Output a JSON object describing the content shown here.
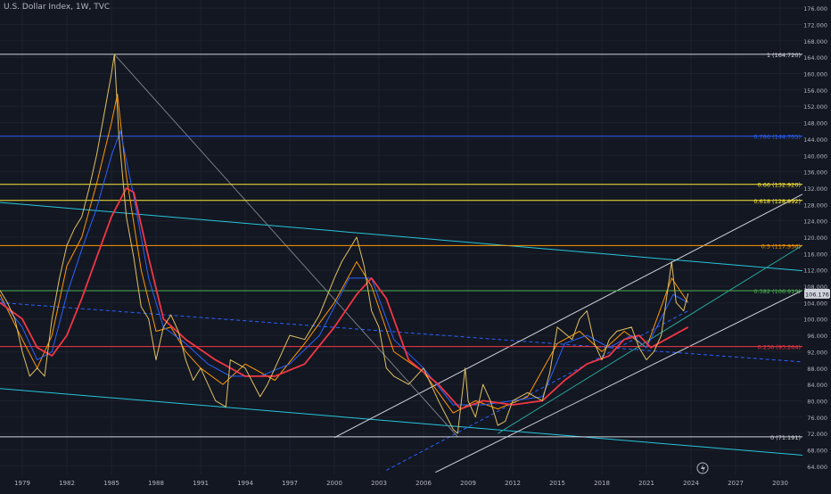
{
  "symbol_title": "U.S. Dollar Index, 1W, TVC",
  "colors": {
    "background": "#131722",
    "axis_text": "#b2b5be",
    "grid": "#1e222d",
    "price_tag": "#d1d4dc"
  },
  "footer_icon": "lightning-icon",
  "chart_data": {
    "type": "line",
    "title": "U.S. Dollar Index, 1W, TVC",
    "xlabel": "",
    "ylabel": "",
    "xlim": [
      1977.5,
      2031.5
    ],
    "ylim": [
      62,
      178
    ],
    "grid": false,
    "x_ticks": [
      "1979",
      "1982",
      "1985",
      "1988",
      "1991",
      "1994",
      "1997",
      "2000",
      "2003",
      "2006",
      "2009",
      "2012",
      "2015",
      "2018",
      "2021",
      "2024",
      "2027",
      "2030"
    ],
    "y_ticks": [
      "64.000",
      "68.000",
      "72.000",
      "76.000",
      "80.000",
      "84.000",
      "88.000",
      "92.000",
      "96.000",
      "100.000",
      "104.000",
      "108.000",
      "112.000",
      "116.000",
      "120.000",
      "124.000",
      "128.000",
      "132.000",
      "136.000",
      "140.000",
      "144.000",
      "148.000",
      "152.000",
      "156.000",
      "160.000",
      "164.000",
      "168.000",
      "172.000",
      "176.000"
    ],
    "last_price": {
      "value": 106.176,
      "label": "106.176"
    },
    "fib_levels": [
      {
        "ratio": "1",
        "value": 164.72,
        "label": "1 (164.720)",
        "color": "#d1d4dc"
      },
      {
        "ratio": "0.786",
        "value": 144.705,
        "label": "0.786 (144.705)",
        "color": "#2962ff"
      },
      {
        "ratio": "0.66",
        "value": 132.92,
        "label": "0.66 (132.920)",
        "color": "#ffeb3b"
      },
      {
        "ratio": "0.618",
        "value": 128.992,
        "label": "0.618 (128.992)",
        "color": "#ffeb3b"
      },
      {
        "ratio": "0.5",
        "value": 117.956,
        "label": "0.5 (117.956)",
        "color": "#ff9800"
      },
      {
        "ratio": "0.382",
        "value": 106.919,
        "label": "0.382 (106.919)",
        "color": "#4caf50"
      },
      {
        "ratio": "0.236",
        "value": 93.264,
        "label": "0.236 (93.264)",
        "color": "#f23645"
      },
      {
        "ratio": "0",
        "value": 71.191,
        "label": "0 (71.191)",
        "color": "#d1d4dc"
      }
    ],
    "price_series": {
      "x": [
        1977.5,
        1978.0,
        1978.5,
        1979.0,
        1979.5,
        1980.0,
        1980.5,
        1981.0,
        1981.5,
        1982.0,
        1982.5,
        1983.0,
        1983.5,
        1984.0,
        1984.5,
        1985.0,
        1985.2,
        1985.5,
        1986.0,
        1986.5,
        1987.0,
        1987.5,
        1988.0,
        1988.5,
        1989.0,
        1989.5,
        1990.0,
        1990.5,
        1991.0,
        1991.5,
        1992.0,
        1992.7,
        1993.0,
        1994.0,
        1995.0,
        1995.5,
        1996.0,
        1997.0,
        1998.0,
        1999.0,
        2000.0,
        2000.5,
        2001.0,
        2001.5,
        2002.0,
        2002.5,
        2003.0,
        2003.5,
        2004.0,
        2005.0,
        2006.0,
        2007.0,
        2008.0,
        2008.3,
        2008.8,
        2009.0,
        2009.5,
        2010.0,
        2010.5,
        2011.0,
        2011.5,
        2012.0,
        2013.0,
        2014.0,
        2014.5,
        2015.0,
        2016.0,
        2016.5,
        2017.0,
        2017.5,
        2018.0,
        2018.5,
        2019.0,
        2020.0,
        2020.5,
        2021.0,
        2021.5,
        2022.0,
        2022.7,
        2023.0,
        2023.5,
        2023.8
      ],
      "y": [
        107,
        104,
        100,
        92,
        86,
        88,
        86,
        100,
        110,
        118,
        122,
        125,
        132,
        140,
        150,
        160,
        164.7,
        145,
        125,
        115,
        103,
        100,
        90,
        98,
        101,
        97,
        90,
        85,
        88,
        84,
        80,
        78.5,
        90,
        88,
        81,
        84,
        88,
        96,
        95,
        101,
        110,
        114,
        117,
        120,
        113,
        102,
        98,
        88,
        86,
        84,
        88,
        80,
        73,
        72,
        88,
        80,
        76,
        84,
        80,
        74,
        75,
        80,
        82,
        80,
        87,
        98,
        95,
        100,
        102,
        94,
        90,
        95,
        97,
        98,
        93,
        90,
        92,
        96,
        114,
        104,
        102,
        106.2
      ]
    },
    "series": [
      {
        "name": "",
        "role": "ema-fast",
        "color": "#ff9800",
        "x": [
          1977.5,
          1979.0,
          1980.0,
          1981.0,
          1982.0,
          1983.0,
          1984.0,
          1985.0,
          1985.4,
          1986.0,
          1987.0,
          1988.0,
          1989.0,
          1990.0,
          1991.0,
          1992.5,
          1994.0,
          1996.0,
          1998.0,
          2000.0,
          2001.5,
          2002.5,
          2004.0,
          2006.0,
          2008.0,
          2009.5,
          2011.0,
          2013.0,
          2015.0,
          2016.5,
          2018.0,
          2019.5,
          2021.0,
          2022.7,
          2023.8
        ],
        "y": [
          106,
          95,
          88,
          96,
          113,
          120,
          133,
          148,
          155,
          135,
          112,
          97,
          98,
          92,
          88,
          84,
          89,
          85,
          94,
          104,
          114,
          108,
          92,
          87,
          77,
          80,
          78,
          81,
          94,
          97,
          92,
          97,
          93,
          110,
          104
        ]
      },
      {
        "name": "",
        "role": "ema-mid",
        "color": "#2962ff",
        "x": [
          1977.5,
          1979.0,
          1980.0,
          1981.0,
          1982.0,
          1983.0,
          1984.0,
          1985.0,
          1985.6,
          1986.5,
          1987.5,
          1988.5,
          1990.0,
          1991.5,
          1993.0,
          1995.0,
          1997.0,
          1999.0,
          2001.0,
          2002.5,
          2004.0,
          2006.0,
          2008.0,
          2010.0,
          2012.0,
          2014.0,
          2015.5,
          2017.0,
          2018.5,
          2020.0,
          2021.0,
          2022.8,
          2023.8
        ],
        "y": [
          105,
          98,
          90,
          92,
          106,
          117,
          127,
          140,
          146,
          130,
          110,
          98,
          94,
          89,
          86,
          86,
          89,
          96,
          110,
          110,
          95,
          88,
          79,
          79,
          80,
          81,
          94,
          96,
          93,
          96,
          93,
          106,
          104
        ]
      },
      {
        "name": "",
        "role": "ma-long",
        "color": "#f23645",
        "x": [
          1977.5,
          1979.0,
          1980.0,
          1981.0,
          1982.0,
          1983.0,
          1984.0,
          1985.0,
          1986.0,
          1986.5,
          1987.5,
          1988.5,
          1990.0,
          1992.0,
          1994.0,
          1996.0,
          1998.0,
          2000.0,
          2001.5,
          2002.5,
          2003.5,
          2005.0,
          2007.0,
          2008.5,
          2010.0,
          2012.0,
          2014.0,
          2015.5,
          2017.0,
          2018.5,
          2019.5,
          2020.5,
          2021.3,
          2022.3,
          2023.8
        ],
        "y": [
          104,
          100,
          93,
          91,
          96,
          105,
          115,
          125,
          132,
          131,
          115,
          100,
          95,
          90,
          86,
          86,
          89,
          98,
          106,
          110,
          105,
          90,
          84,
          78,
          80,
          79,
          80,
          85,
          89,
          91,
          95,
          96,
          93,
          95,
          98
        ]
      }
    ],
    "trendlines": [
      {
        "role": "descending-channel-top",
        "color": "#26c6da",
        "x": [
          1977.5,
          2031.5
        ],
        "y": [
          128.5,
          111.8
        ]
      },
      {
        "role": "descending-channel-bottom",
        "color": "#26c6da",
        "x": [
          1977.5,
          2031.5
        ],
        "y": [
          83.0,
          66.7
        ]
      },
      {
        "role": "dashed-trend",
        "color": "#2962ff",
        "x": [
          1977.5,
          2031.5
        ],
        "y": [
          104.0,
          89.5
        ]
      },
      {
        "role": "rising-channel-top",
        "color": "#d1d4dc",
        "x": [
          2000.0,
          2031.5
        ],
        "y": [
          71.0,
          130.5
        ]
      },
      {
        "role": "rising-channel-bottom",
        "color": "#d1d4dc",
        "x": [
          2006.8,
          2031.5
        ],
        "y": [
          62.5,
          107.0
        ]
      },
      {
        "role": "rising-channel-mid",
        "color": "#26a69a",
        "x": [
          2011.0,
          2031.5
        ],
        "y": [
          72.0,
          118.0
        ]
      },
      {
        "role": "dashed-mid",
        "color": "#2962ff",
        "x": [
          2003.5,
          2023.8
        ],
        "y": [
          63.0,
          102.0
        ]
      },
      {
        "role": "fib-diagonal",
        "color": "#787b86",
        "x": [
          1985.2,
          2008.3
        ],
        "y": [
          164.7,
          71.2
        ]
      }
    ]
  }
}
